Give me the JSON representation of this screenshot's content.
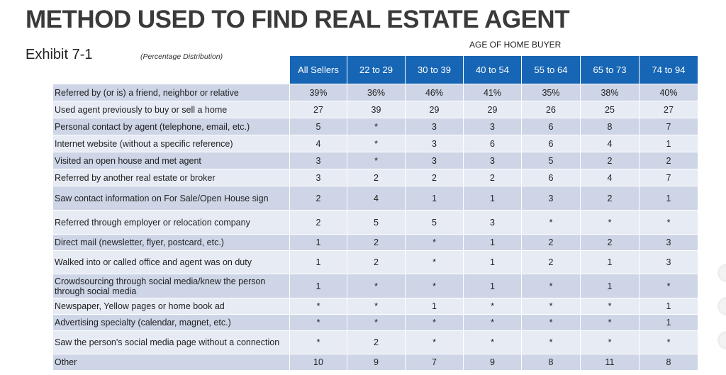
{
  "title": "METHOD USED TO FIND REAL ESTATE AGENT",
  "exhibit": "Exhibit 7-1",
  "subtitle": "(Percentage Distribution)",
  "group_header": "AGE OF HOME BUYER",
  "columns": [
    "All Sellers",
    "22 to 29",
    "30 to 39",
    "40 to 54",
    "55 to 64",
    "65 to 73",
    "74 to 94"
  ],
  "rows": [
    {
      "label": "Referred by (or is) a friend, neighbor or relative",
      "values": [
        "39%",
        "36%",
        "46%",
        "41%",
        "35%",
        "38%",
        "40%"
      ]
    },
    {
      "label": "Used agent previously to buy or sell a home",
      "values": [
        "27",
        "39",
        "29",
        "29",
        "26",
        "25",
        "27"
      ]
    },
    {
      "label": "Personal contact by agent (telephone, email, etc.)",
      "values": [
        "5",
        "*",
        "3",
        "3",
        "6",
        "8",
        "7"
      ]
    },
    {
      "label": "Internet website (without a specific reference)",
      "values": [
        "4",
        "*",
        "3",
        "6",
        "6",
        "4",
        "1"
      ]
    },
    {
      "label": "Visited an open house and met agent",
      "values": [
        "3",
        "*",
        "3",
        "3",
        "5",
        "2",
        "2"
      ]
    },
    {
      "label": "Referred by another real estate or broker",
      "values": [
        "3",
        "2",
        "2",
        "2",
        "6",
        "4",
        "7"
      ]
    },
    {
      "label": "Saw contact information on For Sale/Open House sign",
      "values": [
        "2",
        "4",
        "1",
        "1",
        "3",
        "2",
        "1"
      ]
    },
    {
      "label": "Referred through employer or relocation company",
      "values": [
        "2",
        "5",
        "5",
        "3",
        "*",
        "*",
        "*"
      ]
    },
    {
      "label": "Direct mail (newsletter, flyer, postcard, etc.)",
      "values": [
        "1",
        "2",
        "*",
        "1",
        "2",
        "2",
        "3"
      ]
    },
    {
      "label": "Walked into or called office and agent was on duty",
      "values": [
        "1",
        "2",
        "*",
        "1",
        "2",
        "1",
        "3"
      ]
    },
    {
      "label": "Crowdsourcing through social media/knew the person through social media",
      "values": [
        "1",
        "*",
        "*",
        "1",
        "*",
        "1",
        "*"
      ]
    },
    {
      "label": "Newspaper, Yellow pages or home book ad",
      "values": [
        "*",
        "*",
        "1",
        "*",
        "*",
        "*",
        "1"
      ]
    },
    {
      "label": "Advertising specialty (calendar, magnet, etc.)",
      "values": [
        "*",
        "*",
        "*",
        "*",
        "*",
        "*",
        "1"
      ]
    },
    {
      "label": "Saw the person's social media page without a connection",
      "values": [
        "*",
        "2",
        "*",
        "*",
        "*",
        "*",
        "*"
      ]
    },
    {
      "label": "Other",
      "values": [
        "10",
        "9",
        "7",
        "9",
        "8",
        "11",
        "8"
      ]
    }
  ]
}
